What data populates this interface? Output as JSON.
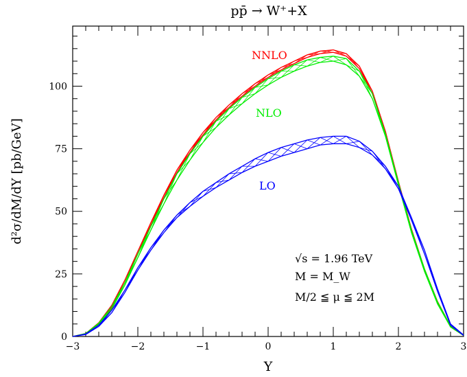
{
  "chart_data": {
    "type": "line",
    "title": "pp̄ → W⁺+X",
    "xlabel": "Y",
    "ylabel": "d²σ/dM/dY [pb/GeV]",
    "xlim": [
      -3,
      3
    ],
    "ylim": [
      0,
      124
    ],
    "xticks": [
      "-3",
      "-2",
      "-1",
      "0",
      "1",
      "2",
      "3"
    ],
    "yticks": [
      "0",
      "25",
      "50",
      "75",
      "100"
    ],
    "grid": false,
    "annotations": [
      "√s = 1.96 TeV",
      "M = M_W",
      "M/2 ≦ μ ≦ 2M"
    ],
    "x": [
      -3,
      -2.8,
      -2.6,
      -2.4,
      -2.2,
      -2,
      -1.8,
      -1.6,
      -1.4,
      -1.2,
      -1,
      -0.8,
      -0.6,
      -0.4,
      -0.2,
      0,
      0.2,
      0.4,
      0.6,
      0.8,
      1,
      1.2,
      1.4,
      1.6,
      1.8,
      2,
      2.2,
      2.4,
      2.6,
      2.8,
      3
    ],
    "series": [
      {
        "name": "NNLO",
        "color": "#ff0000",
        "lower": [
          0,
          1,
          5,
          11.5,
          21.5,
          33,
          44.5,
          55.5,
          65.5,
          73.5,
          80.5,
          86.5,
          91.5,
          96,
          100,
          103.5,
          106.5,
          109,
          111.5,
          113,
          113.5,
          112,
          107,
          97,
          81,
          61,
          42,
          26.5,
          13.5,
          3.8,
          0.4
        ],
        "upper": [
          0,
          1.2,
          5.5,
          12.5,
          22.5,
          34,
          45.5,
          56.5,
          66.5,
          74.5,
          81.5,
          87.5,
          92.5,
          97,
          101,
          104.5,
          107.5,
          110,
          112.5,
          114,
          114.5,
          113,
          108,
          98,
          82,
          62,
          43,
          27,
          14,
          4.2,
          0.6
        ]
      },
      {
        "name": "NLO",
        "color": "#00ee00",
        "lower": [
          0,
          1,
          4.8,
          11,
          20.5,
          31.5,
          42.5,
          53,
          62.5,
          70.5,
          77.5,
          83.5,
          88.5,
          93,
          97,
          100.5,
          103.5,
          106,
          108,
          109.5,
          110,
          108.5,
          104,
          95,
          80,
          60.5,
          41.5,
          26,
          13,
          3.8,
          0.4
        ],
        "upper": [
          0,
          1.2,
          5.3,
          12,
          21.5,
          33,
          44,
          55,
          65,
          73,
          80,
          86,
          91,
          95.5,
          99.5,
          103,
          106,
          108.5,
          110.5,
          111.5,
          112,
          111,
          106,
          97,
          81,
          61.5,
          42.5,
          27,
          13.8,
          4.2,
          0.6
        ]
      },
      {
        "name": "LO",
        "color": "#0000ff",
        "lower": [
          0,
          0.8,
          4,
          9.5,
          17.5,
          26.5,
          34.5,
          41.5,
          47.5,
          52,
          56,
          59.5,
          62.5,
          65.5,
          68,
          70,
          72,
          73.5,
          75,
          76.5,
          77,
          77,
          75.5,
          72.5,
          67,
          59,
          46.5,
          33,
          18,
          4.5,
          0.4
        ],
        "upper": [
          0,
          1,
          4.5,
          10.5,
          18.5,
          27.5,
          35.5,
          42.5,
          48.5,
          53.5,
          58,
          61.5,
          65,
          68,
          71,
          73.5,
          75.5,
          77,
          78.5,
          79.5,
          80,
          80,
          78,
          74,
          68,
          60,
          47.5,
          34.5,
          19,
          5,
          0.6
        ]
      }
    ]
  }
}
